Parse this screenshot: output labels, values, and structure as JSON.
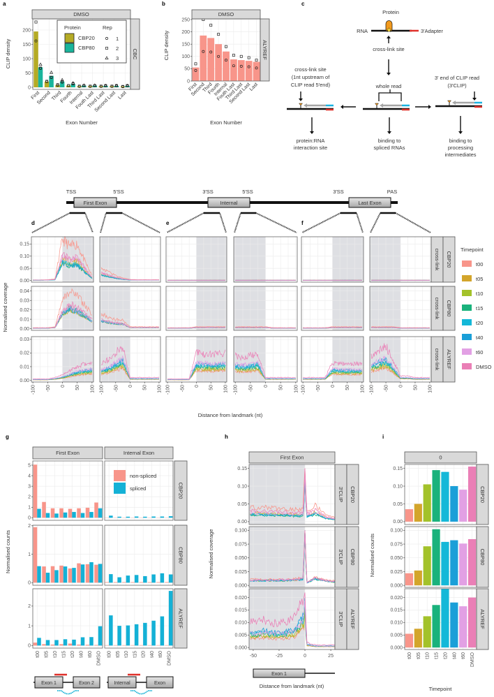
{
  "panel_labels": {
    "a": "a",
    "b": "b",
    "c": "c",
    "d": "d",
    "e": "e",
    "f": "f",
    "g": "g",
    "h": "h",
    "i": "i"
  },
  "timepoints": [
    "t00",
    "t05",
    "t10",
    "t15",
    "t20",
    "t40",
    "t60",
    "DMSO"
  ],
  "timepoint_colors": [
    "#f8958a",
    "#d3a52b",
    "#a3c22a",
    "#1ab27c",
    "#14b8d8",
    "#1a9fd8",
    "#e2a0e4",
    "#ea7fb6"
  ],
  "timepoint_legend_title": "Timepoint",
  "diagram_c": {
    "protein": "Protein",
    "rna": "RNA",
    "adapter": "3′Adapter",
    "crosslink": "cross-link site",
    "whole_read": "whole read",
    "left_title": [
      "cross-link site",
      "(1nt upstream of",
      "CLIP read 5′end)"
    ],
    "right_title": [
      "3′ end of CLIP read",
      "(3′CLIP)"
    ],
    "left_out": [
      "protein:RNA",
      "interaction site"
    ],
    "mid_out": [
      "binding to",
      "spliced RNAs"
    ],
    "right_out": [
      "binding to",
      "processing",
      "intermediates"
    ],
    "colors": {
      "protein": "#f29a1e",
      "adapter": "#e0312b",
      "read": "#a6a6a6",
      "barcode": "#1ab2e0"
    }
  },
  "gene_model": {
    "landmarks": [
      "TSS",
      "5′SS",
      "3′SS",
      "5′SS",
      "3′SS",
      "PAS"
    ],
    "exons": [
      "First Exon",
      "Internal",
      "Last Exon"
    ]
  },
  "chart_data": [
    {
      "panel": "a",
      "type": "bar",
      "strip_top": "DMSO",
      "strip_right": "CBC",
      "xlabel": "Exon Number",
      "ylabel": "CLIP density",
      "ylim": [
        0,
        235
      ],
      "yticks": [
        "0",
        "50",
        "100",
        "150",
        "200"
      ],
      "categories": [
        "First",
        "Second",
        "Third",
        "Fourth",
        "Internal",
        "Fouth Last",
        "Third Last",
        "Second Last",
        "Last"
      ],
      "legend": {
        "protein_title": "Protein",
        "rep_title": "Rep",
        "reps": [
          "1",
          "2",
          "3"
        ]
      },
      "series": [
        {
          "name": "CBP20",
          "color": "#b5ab25",
          "values": [
            195,
            20,
            8,
            6,
            4,
            4,
            4,
            4,
            3
          ],
          "replicates": [
            [
              162,
              20,
              7,
              6,
              3,
              3,
              3,
              3,
              2
            ],
            [
              228,
              21,
              9,
              6,
              4,
              4,
              4,
              4,
              3
            ]
          ]
        },
        {
          "name": "CBP80",
          "color": "#1ab59c",
          "values": [
            70,
            40,
            20,
            12,
            6,
            6,
            5,
            5,
            5
          ],
          "replicates": [
            [
              66,
              34,
              18,
              12,
              6,
              6,
              5,
              5,
              5
            ],
            [
              67,
              35,
              20,
              13,
              6,
              6,
              6,
              6,
              6
            ],
            [
              80,
              52,
              26,
              15,
              7,
              7,
              6,
              6,
              6
            ]
          ]
        }
      ]
    },
    {
      "panel": "b",
      "type": "bar",
      "strip_top": "DMSO",
      "strip_right": "ALYREF",
      "xlabel": "Exon Number",
      "ylabel": "CLIP density",
      "ylim": [
        0,
        253
      ],
      "yticks": [
        "0",
        "50",
        "100",
        "150",
        "200",
        "250"
      ],
      "categories": [
        "First",
        "Second",
        "Third",
        "Fourth",
        "Internal",
        "Fouth Last",
        "Third Last",
        "Second Last",
        "Last"
      ],
      "series": [
        {
          "name": "ALYREF",
          "color": "#f8958a",
          "values": [
            55,
            185,
            175,
            150,
            120,
            88,
            85,
            82,
            78
          ],
          "replicates": [
            [
              43,
              120,
              118,
              100,
              85,
              62,
              60,
              58,
              53
            ],
            [
              70,
              250,
              227,
              190,
              140,
              105,
              100,
              95,
              85
            ]
          ]
        }
      ]
    },
    {
      "panels": [
        "d",
        "e",
        "f"
      ],
      "type": "line",
      "xlabel": "Distance from landmark (nt)",
      "ylabel": "Normalised coverage",
      "xlim": [
        -100,
        100
      ],
      "xticks": [
        "-100",
        "-50",
        "0",
        "50",
        "100"
      ],
      "x": [
        -100,
        -75,
        -50,
        -25,
        0,
        25,
        50,
        75,
        100
      ],
      "rows": [
        {
          "protein": "CBP20",
          "type": "cross-link",
          "ylim": [
            0,
            0.18
          ],
          "yticks": [
            "0.00",
            "0.05",
            "0.10",
            "0.15"
          ],
          "series_scale": [
            1,
            0.55,
            0.45,
            0.42,
            0.45,
            0.42,
            0.6,
            0.65
          ],
          "profiles": [
            [
              0.002,
              0.002,
              0.003,
              0.006,
              0.17,
              0.14,
              0.15,
              0.08,
              0.02
            ],
            [
              0.05,
              0.035,
              0.02,
              0.01,
              0.004,
              0.003,
              0.003,
              0.003,
              0.003
            ],
            [
              0.001,
              0.001,
              0.001,
              0.001,
              0.001,
              0.001,
              0.001,
              0.001,
              0.001
            ],
            [
              0.001,
              0.001,
              0.001,
              0.001,
              0.001,
              0.001,
              0.001,
              0.001,
              0.001
            ],
            [
              0.001,
              0.001,
              0.001,
              0.001,
              0.001,
              0.001,
              0.001,
              0.001,
              0.001
            ],
            [
              0.001,
              0.001,
              0.001,
              0.001,
              0.001,
              0.001,
              0.001,
              0.001,
              0.001
            ]
          ]
        },
        {
          "protein": "CBP80",
          "type": "cross-link",
          "ylim": [
            0,
            0.045
          ],
          "yticks": [
            "0.00",
            "0.01",
            "0.02",
            "0.03",
            "0.04"
          ],
          "series_scale": [
            1,
            0.5,
            0.5,
            0.55,
            0.55,
            0.5,
            0.55,
            0.65
          ],
          "profiles": [
            [
              0.001,
              0.001,
              0.001,
              0.002,
              0.03,
              0.04,
              0.035,
              0.025,
              0.015
            ],
            [
              0.016,
              0.012,
              0.01,
              0.009,
              0.002,
              0.002,
              0.002,
              0.002,
              0.002
            ],
            [
              0.001,
              0.001,
              0.001,
              0.001,
              0.002,
              0.002,
              0.002,
              0.002,
              0.002
            ],
            [
              0.002,
              0.002,
              0.002,
              0.002,
              0.002,
              0.001,
              0.001,
              0.001,
              0.001
            ],
            [
              0.001,
              0.001,
              0.001,
              0.001,
              0.002,
              0.002,
              0.002,
              0.002,
              0.002
            ],
            [
              0.002,
              0.002,
              0.002,
              0.002,
              0.001,
              0.001,
              0.001,
              0.001,
              0.001
            ]
          ]
        },
        {
          "protein": "ALYREF",
          "type": "cross-link",
          "ylim": [
            0,
            0.032
          ],
          "yticks": [
            "0.00",
            "0.01",
            "0.02",
            "0.03"
          ],
          "series_scale": [
            0.35,
            0.4,
            0.45,
            0.5,
            0.55,
            0.6,
            0.65,
            1
          ],
          "profiles": [
            [
              0.001,
              0.001,
              0.001,
              0.002,
              0.004,
              0.007,
              0.01,
              0.012,
              0.013
            ],
            [
              0.012,
              0.015,
              0.02,
              0.025,
              0.002,
              0.002,
              0.002,
              0.002,
              0.002
            ],
            [
              0.001,
              0.001,
              0.001,
              0.001,
              0.02,
              0.019,
              0.019,
              0.019,
              0.02
            ],
            [
              0.018,
              0.017,
              0.018,
              0.02,
              0.002,
              0.002,
              0.002,
              0.002,
              0.002
            ],
            [
              0.002,
              0.002,
              0.002,
              0.002,
              0.013,
              0.012,
              0.012,
              0.012,
              0.012
            ],
            [
              0.018,
              0.022,
              0.025,
              0.015,
              0.003,
              0.003,
              0.002,
              0.002,
              0.002
            ]
          ]
        }
      ]
    },
    {
      "panel": "g",
      "type": "bar",
      "ylabel": "Normalised counts",
      "facets": [
        "First Exon",
        "Internal Exon"
      ],
      "categories": [
        "t00",
        "t05",
        "t10",
        "t15",
        "t20",
        "t40",
        "t60",
        "DMSO"
      ],
      "legend": [
        "non-spliced",
        "spliced"
      ],
      "colors": [
        "#f8958a",
        "#14b1d6"
      ],
      "gene_diagrams": [
        [
          "Exon 1",
          "Exon 2"
        ],
        [
          "Internal",
          "Exon"
        ]
      ],
      "rows": [
        {
          "protein": "CBP20",
          "ylim": [
            0,
            5.4
          ],
          "yticks": [
            "0",
            "1",
            "2",
            "3",
            "4",
            "5"
          ],
          "non_spliced": [
            [
              5.05,
              1.5,
              0.9,
              0.9,
              0.85,
              0.9,
              0.95,
              1.45
            ],
            [
              0.02,
              0.02,
              0.02,
              0.02,
              0.02,
              0.02,
              0.02,
              0.02
            ]
          ],
          "spliced": [
            [
              0.85,
              0.45,
              0.4,
              0.5,
              0.55,
              0.45,
              0.55,
              0.9
            ],
            [
              0.2,
              0.1,
              0.1,
              0.12,
              0.1,
              0.12,
              0.12,
              0.15
            ]
          ]
        },
        {
          "protein": "CBP80",
          "ylim": [
            0,
            2.02
          ],
          "yticks": [
            "0",
            "1",
            "2"
          ],
          "non_spliced": [
            [
              1.95,
              0.57,
              0.58,
              0.6,
              0.5,
              0.68,
              0.65,
              0.63
            ],
            [
              0.02,
              0.02,
              0.02,
              0.02,
              0.02,
              0.02,
              0.02,
              0.02
            ]
          ],
          "spliced": [
            [
              0.58,
              0.35,
              0.44,
              0.57,
              0.52,
              0.64,
              0.72,
              0.66
            ],
            [
              0.3,
              0.19,
              0.25,
              0.27,
              0.23,
              0.29,
              0.33,
              0.29
            ]
          ]
        },
        {
          "protein": "ALYREF",
          "ylim": [
            0,
            2.88
          ],
          "yticks": [
            "0",
            "1",
            "2"
          ],
          "non_spliced": [
            [
              0.15,
              0.07,
              0.05,
              0.07,
              0.1,
              0.05,
              0.04,
              0.03
            ],
            [
              0.02,
              0.02,
              0.02,
              0.02,
              0.02,
              0.02,
              0.02,
              0.02
            ]
          ],
          "spliced": [
            [
              0.39,
              0.28,
              0.28,
              0.32,
              0.3,
              0.42,
              0.43,
              0.98
            ],
            [
              1.53,
              1.0,
              1.02,
              1.08,
              1.15,
              1.26,
              1.48,
              2.77
            ]
          ]
        }
      ]
    },
    {
      "panel": "h",
      "type": "line",
      "facet": "First Exon",
      "xlabel": "Distance from landmark (nt)",
      "ylabel": "Normalised coverage",
      "xlim": [
        -54,
        29
      ],
      "xticks": [
        "-50",
        "-25",
        "0",
        "25"
      ],
      "exon_label": "Exon 1",
      "x": [
        -50,
        -40,
        -30,
        -20,
        -10,
        -2,
        0,
        2,
        10,
        20,
        28
      ],
      "rows": [
        {
          "protein": "CBP20",
          "type": "3′CLIP",
          "ylim": [
            -0.008,
            0.161
          ],
          "yticks": [
            "0.00",
            "0.05",
            "0.10",
            "0.15"
          ],
          "series_scale": [
            1,
            0.6,
            0.5,
            0.45,
            0.5,
            0.5,
            0.6,
            0.75
          ],
          "profile": [
            0.04,
            0.04,
            0.038,
            0.036,
            0.034,
            0.035,
            0.15,
            0.03,
            0.045,
            0.02,
            0.012
          ]
        },
        {
          "protein": "CBP80",
          "type": "3′CLIP",
          "ylim": [
            -0.0036,
            0.1068
          ],
          "yticks": [
            "0.000",
            "0.025",
            "0.050",
            "0.075",
            "0.100"
          ],
          "series_scale": [
            1,
            0.8,
            0.75,
            0.8,
            0.8,
            0.8,
            0.85,
            0.9
          ],
          "profile": [
            0.011,
            0.011,
            0.011,
            0.011,
            0.012,
            0.014,
            0.1,
            0.006,
            0.015,
            0.01,
            0.008
          ]
        },
        {
          "protein": "ALYREF",
          "type": "3′CLIP",
          "ylim": [
            -0.0008,
            0.0235
          ],
          "yticks": [
            "0.000",
            "0.005",
            "0.010",
            "0.015",
            "0.020"
          ],
          "series_scale": [
            0.35,
            0.4,
            0.45,
            0.5,
            0.55,
            0.6,
            0.55,
            1
          ],
          "profile": [
            0.01,
            0.011,
            0.01,
            0.01,
            0.012,
            0.02,
            0.022,
            0.002,
            0.001,
            0.001,
            0.001
          ]
        }
      ]
    },
    {
      "panel": "i",
      "type": "bar",
      "facet": "0",
      "xlabel": "Timepoint",
      "ylabel": "Normalised counts",
      "categories": [
        "t00",
        "t05",
        "t10",
        "t15",
        "t20",
        "t40",
        "t60",
        "DMSO"
      ],
      "rows": [
        {
          "protein": "CBP20",
          "ylim": [
            -0.008,
            0.161
          ],
          "yticks": [
            "0.00",
            "0.05",
            "0.10",
            "0.15"
          ],
          "values": [
            0.035,
            0.05,
            0.105,
            0.145,
            0.14,
            0.1,
            0.09,
            0.155
          ]
        },
        {
          "protein": "CBP80",
          "ylim": [
            -0.0036,
            0.1068
          ],
          "yticks": [
            "0.000",
            "0.025",
            "0.050",
            "0.075",
            "0.100"
          ],
          "values": [
            0.022,
            0.027,
            0.071,
            0.102,
            0.079,
            0.082,
            0.076,
            0.084
          ]
        },
        {
          "protein": "ALYREF",
          "ylim": [
            -0.0008,
            0.0235
          ],
          "yticks": [
            "0.000",
            "0.005",
            "0.010",
            "0.015",
            "0.020"
          ],
          "values": [
            0.0055,
            0.0075,
            0.0125,
            0.017,
            0.0235,
            0.018,
            0.0165,
            0.02
          ]
        }
      ]
    }
  ]
}
